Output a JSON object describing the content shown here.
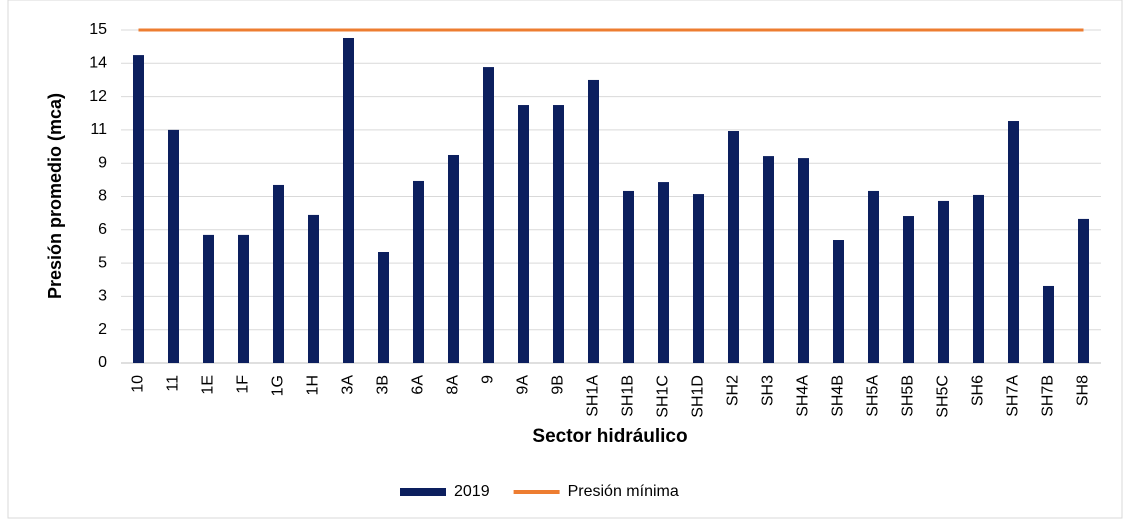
{
  "chart_data": {
    "type": "bar",
    "x_label": "Sector hidráulico",
    "y_label": "Presión promedio (mca)",
    "categories": [
      "10",
      "11",
      "1E",
      "1F",
      "1G",
      "1H",
      "3A",
      "3B",
      "6A",
      "8A",
      "9",
      "9A",
      "9B",
      "SH1A",
      "SH1B",
      "SH1C",
      "SH1D",
      "SH2",
      "SH3",
      "SH4A",
      "SH4B",
      "SH5A",
      "SH5B",
      "SH5C",
      "SH6",
      "SH7A",
      "SH7B",
      "SH8"
    ],
    "series": [
      {
        "name": "2019",
        "type": "bar",
        "color": "#0c1f5e",
        "values": [
          13.87,
          10.5,
          5.77,
          5.77,
          8.02,
          6.67,
          14.64,
          5.0,
          8.2,
          9.37,
          13.33,
          11.62,
          11.62,
          12.75,
          7.75,
          8.15,
          7.61,
          10.45,
          9.32,
          9.23,
          5.54,
          7.75,
          6.62,
          7.3,
          7.57,
          10.9,
          3.47,
          6.49
        ]
      },
      {
        "name": "Presión mínima",
        "type": "line",
        "color": "#ed7d31",
        "values": [
          15,
          15,
          15,
          15,
          15,
          15,
          15,
          15,
          15,
          15,
          15,
          15,
          15,
          15,
          15,
          15,
          15,
          15,
          15,
          15,
          15,
          15,
          15,
          15,
          15,
          15,
          15,
          15
        ]
      }
    ],
    "ylim": [
      0,
      15
    ],
    "yticks": [
      0,
      {
        "value": 1.5,
        "label": "2"
      },
      3,
      {
        "value": 4.5,
        "label": "5"
      },
      6,
      {
        "value": 7.5,
        "label": "8"
      },
      9,
      {
        "value": 10.5,
        "label": "11"
      },
      12,
      {
        "value": 13.5,
        "label": "14"
      },
      15
    ],
    "grid": true,
    "legend": "bottom"
  }
}
